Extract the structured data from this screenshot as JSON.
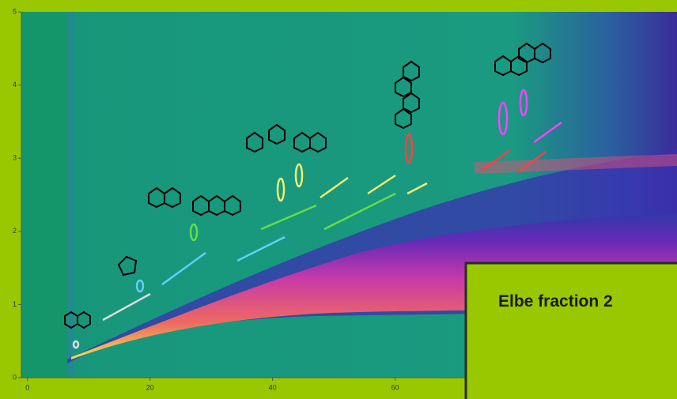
{
  "chart_data": {
    "type": "heatmap",
    "annotation": "Elbe fraction 2",
    "xlim": [
      -1,
      106
    ],
    "xticks": [
      0,
      20,
      40,
      60
    ],
    "ylim": [
      0,
      5
    ],
    "yticks": [
      0,
      1,
      2,
      3,
      4,
      5
    ]
  }
}
